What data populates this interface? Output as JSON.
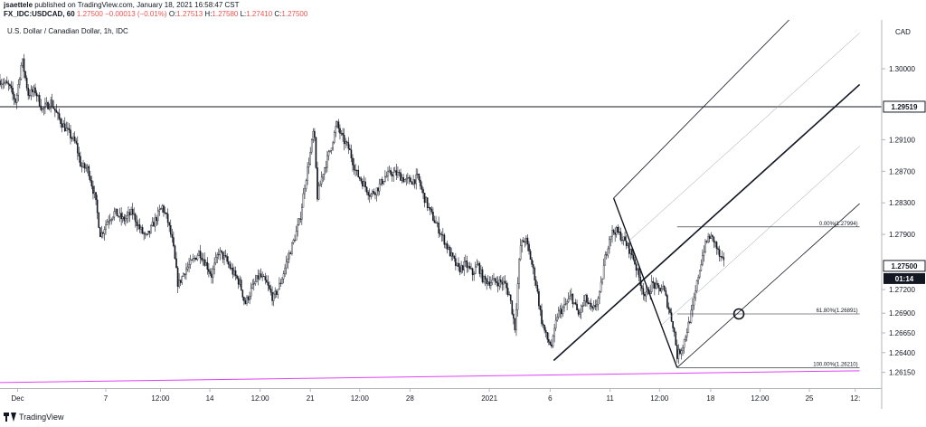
{
  "header": {
    "author": "jsaettele",
    "published_text": "published on TradingView.com, January 18, 2021 16:58:47 CST",
    "symbol": "FX_IDC:USDCAD, 60",
    "last": "1.27500",
    "change": "−0.00013 (−0.01%)",
    "o_label": "O:",
    "o_value": "1.27513",
    "h_label": "H:",
    "h_value": "1.27580",
    "l_label": "L:",
    "l_value": "1.27410",
    "c_label": "C:",
    "c_value": "1.27500"
  },
  "footer": {
    "logo_text": "TradingView"
  },
  "colors": {
    "candle": "#131722",
    "pink_line": "#e040fb",
    "price_axis_bg": "#ffffff",
    "current_price_bg": "#131722"
  },
  "chart_data": {
    "type": "candlestick",
    "subtitle": "U.S. Dollar / Canadian Dollar, 1h, IDC",
    "currency": "CAD",
    "ylim": [
      1.2595,
      1.3062
    ],
    "xlim": [
      0,
      1000
    ],
    "yticks": [
      "1.30000",
      "1.29100",
      "1.28700",
      "1.28300",
      "1.27900",
      "1.27200",
      "1.26900",
      "1.26650",
      "1.26400",
      "1.26150"
    ],
    "xticks": [
      {
        "label": "Dec",
        "t": 20
      },
      {
        "label": "7",
        "t": 120
      },
      {
        "label": "12:00",
        "t": 182
      },
      {
        "label": "14",
        "t": 238
      },
      {
        "label": "12:00",
        "t": 295
      },
      {
        "label": "21",
        "t": 352
      },
      {
        "label": "12:00",
        "t": 408
      },
      {
        "label": "28",
        "t": 465
      },
      {
        "label": "2021",
        "t": 555
      },
      {
        "label": "6",
        "t": 624
      },
      {
        "label": "11",
        "t": 692
      },
      {
        "label": "12:00",
        "t": 748
      },
      {
        "label": "18",
        "t": 806
      },
      {
        "label": "12:00",
        "t": 862
      },
      {
        "label": "25",
        "t": 918
      },
      {
        "label": "12:",
        "t": 970
      }
    ],
    "price_labels": {
      "horizontal_level": "1.29519",
      "current_price": "1.27500",
      "countdown": "01:14"
    },
    "horizontal_level": 1.29519,
    "current_price": 1.275,
    "price_path": [
      [
        0,
        1.2985
      ],
      [
        10,
        1.2978
      ],
      [
        18,
        1.2958
      ],
      [
        25,
        1.3012
      ],
      [
        32,
        1.2968
      ],
      [
        40,
        1.2972
      ],
      [
        48,
        1.2948
      ],
      [
        58,
        1.2958
      ],
      [
        66,
        1.2938
      ],
      [
        78,
        1.2918
      ],
      [
        86,
        1.2905
      ],
      [
        92,
        1.2876
      ],
      [
        100,
        1.2873
      ],
      [
        108,
        1.2835
      ],
      [
        114,
        1.2788
      ],
      [
        122,
        1.2808
      ],
      [
        130,
        1.2818
      ],
      [
        140,
        1.2808
      ],
      [
        150,
        1.2818
      ],
      [
        158,
        1.2798
      ],
      [
        166,
        1.2785
      ],
      [
        176,
        1.2808
      ],
      [
        184,
        1.2825
      ],
      [
        190,
        1.2808
      ],
      [
        196,
        1.2778
      ],
      [
        202,
        1.2725
      ],
      [
        210,
        1.2745
      ],
      [
        218,
        1.2755
      ],
      [
        226,
        1.2768
      ],
      [
        234,
        1.2752
      ],
      [
        240,
        1.2738
      ],
      [
        248,
        1.2768
      ],
      [
        256,
        1.2758
      ],
      [
        264,
        1.2742
      ],
      [
        272,
        1.2728
      ],
      [
        278,
        1.2702
      ],
      [
        286,
        1.2722
      ],
      [
        294,
        1.2738
      ],
      [
        302,
        1.2728
      ],
      [
        310,
        1.2708
      ],
      [
        318,
        1.2728
      ],
      [
        326,
        1.2758
      ],
      [
        334,
        1.2785
      ],
      [
        340,
        1.2808
      ],
      [
        346,
        1.2855
      ],
      [
        352,
        1.2893
      ],
      [
        356,
        1.2925
      ],
      [
        360,
        1.2838
      ],
      [
        366,
        1.2868
      ],
      [
        374,
        1.2895
      ],
      [
        382,
        1.293
      ],
      [
        388,
        1.2912
      ],
      [
        396,
        1.2898
      ],
      [
        404,
        1.2868
      ],
      [
        412,
        1.2855
      ],
      [
        420,
        1.284
      ],
      [
        428,
        1.2848
      ],
      [
        436,
        1.2862
      ],
      [
        444,
        1.2868
      ],
      [
        452,
        1.2866
      ],
      [
        460,
        1.2858
      ],
      [
        468,
        1.2858
      ],
      [
        474,
        1.2862
      ],
      [
        480,
        1.284
      ],
      [
        488,
        1.2818
      ],
      [
        496,
        1.28
      ],
      [
        504,
        1.2782
      ],
      [
        512,
        1.2762
      ],
      [
        520,
        1.2745
      ],
      [
        528,
        1.2752
      ],
      [
        536,
        1.274
      ],
      [
        542,
        1.2752
      ],
      [
        548,
        1.2732
      ],
      [
        556,
        1.273
      ],
      [
        564,
        1.273
      ],
      [
        572,
        1.2728
      ],
      [
        578,
        1.2712
      ],
      [
        584,
        1.2672
      ],
      [
        590,
        1.2775
      ],
      [
        596,
        1.2785
      ],
      [
        602,
        1.2758
      ],
      [
        608,
        1.2728
      ],
      [
        614,
        1.2682
      ],
      [
        620,
        1.2658
      ],
      [
        626,
        1.2648
      ],
      [
        632,
        1.2688
      ],
      [
        640,
        1.2698
      ],
      [
        648,
        1.2712
      ],
      [
        656,
        1.2688
      ],
      [
        664,
        1.2708
      ],
      [
        672,
        1.2692
      ],
      [
        680,
        1.2712
      ],
      [
        686,
        1.2758
      ],
      [
        692,
        1.279
      ],
      [
        698,
        1.2795
      ],
      [
        704,
        1.2788
      ],
      [
        710,
        1.2778
      ],
      [
        718,
        1.2762
      ],
      [
        724,
        1.2738
      ],
      [
        732,
        1.271
      ],
      [
        740,
        1.2728
      ],
      [
        746,
        1.272
      ],
      [
        752,
        1.2722
      ],
      [
        758,
        1.2698
      ],
      [
        764,
        1.2672
      ],
      [
        768,
        1.2636
      ],
      [
        774,
        1.2648
      ],
      [
        780,
        1.2672
      ],
      [
        786,
        1.2698
      ],
      [
        792,
        1.2738
      ],
      [
        798,
        1.277
      ],
      [
        804,
        1.2788
      ],
      [
        810,
        1.2782
      ],
      [
        816,
        1.2762
      ],
      [
        822,
        1.275
      ]
    ],
    "pitchfork": {
      "anchor_a": [
        628,
        1.263
      ],
      "anchor_b": [
        696,
        1.2836
      ],
      "anchor_c": [
        768,
        1.2621
      ],
      "median_line": [
        [
          628,
          1.263
        ],
        [
          975,
          1.298
        ]
      ],
      "outer_upper": [
        [
          696,
          1.2836
        ],
        [
          895,
          1.3062
        ]
      ],
      "outer_lower": [
        [
          768,
          1.2621
        ],
        [
          975,
          1.2829
        ]
      ]
    },
    "fibonacci": {
      "levels": [
        {
          "label": "0.00%(1.27994)",
          "pct": 0.0,
          "price": 1.27994
        },
        {
          "label": "61.80%(1.26891)",
          "pct": 61.8,
          "price": 1.26891
        },
        {
          "label": "100.00%(1.26210)",
          "pct": 100.0,
          "price": 1.2621
        }
      ],
      "x_start": 768,
      "x_end": 975
    },
    "circle_marker": [
      838,
      1.26891
    ],
    "pink_trendline": [
      [
        0,
        1.2602
      ],
      [
        975,
        1.2617
      ]
    ]
  }
}
